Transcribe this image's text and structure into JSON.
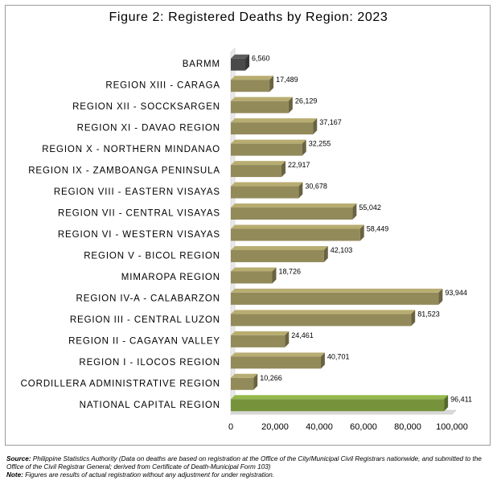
{
  "chart_data": {
    "type": "bar",
    "orientation": "horizontal",
    "title": "Figure 2: Registered Deaths by Region: 2023",
    "categories": [
      "BARMM",
      "REGION XIII - CARAGA",
      "REGION XII - SOCCKSARGEN",
      "REGION XI - DAVAO REGION",
      "REGION X - NORTHERN MINDANAO",
      "REGION IX - ZAMBOANGA PENINSULA",
      "REGION VIII - EASTERN VISAYAS",
      "REGION VII - CENTRAL VISAYAS",
      "REGION VI - WESTERN VISAYAS",
      "REGION V - BICOL REGION",
      "MIMAROPA REGION",
      "REGION IV-A - CALABARZON",
      "REGION III - CENTRAL LUZON",
      "REGION II - CAGAYAN VALLEY",
      "REGION I - ILOCOS REGION",
      "CORDILLERA ADMINISTRATIVE REGION",
      "NATIONAL CAPITAL REGION"
    ],
    "values": [
      6560,
      17489,
      26129,
      37167,
      32255,
      22917,
      30678,
      55042,
      58449,
      42103,
      18726,
      93944,
      81523,
      24461,
      40701,
      10266,
      96411
    ],
    "value_labels": [
      "6,560",
      "17,489",
      "26,129",
      "37,167",
      "32,255",
      "22,917",
      "30,678",
      "55,042",
      "58,449",
      "42,103",
      "18,726",
      "93,944",
      "81,523",
      "24,461",
      "40,701",
      "10,266",
      "96,411"
    ],
    "bar_colors": [
      "#4a4a4a",
      "#938a5a",
      "#938a5a",
      "#938a5a",
      "#938a5a",
      "#938a5a",
      "#938a5a",
      "#938a5a",
      "#938a5a",
      "#938a5a",
      "#938a5a",
      "#938a5a",
      "#938a5a",
      "#938a5a",
      "#938a5a",
      "#938a5a",
      "#76933c"
    ],
    "xlim": [
      0,
      100000
    ],
    "x_ticks": [
      0,
      20000,
      40000,
      60000,
      80000,
      100000
    ],
    "x_tick_labels": [
      "0",
      "20,000",
      "40,000",
      "60,000",
      "80,000",
      "100,000"
    ],
    "grid": false,
    "legend": "none"
  },
  "footnotes": {
    "source_label": "Source:",
    "source_text": " Philippine Statistics Authority (Data on deaths are based on registration at the Office of the City/Municipal Civil Registrars nationwide, and submitted to the Office of the Civil Registrar General; derived from Certificate of Death-Municipal Form 103)",
    "note_label": "Note:",
    "note_text": " Figures are results of actual registration without any adjustment for under registration."
  }
}
